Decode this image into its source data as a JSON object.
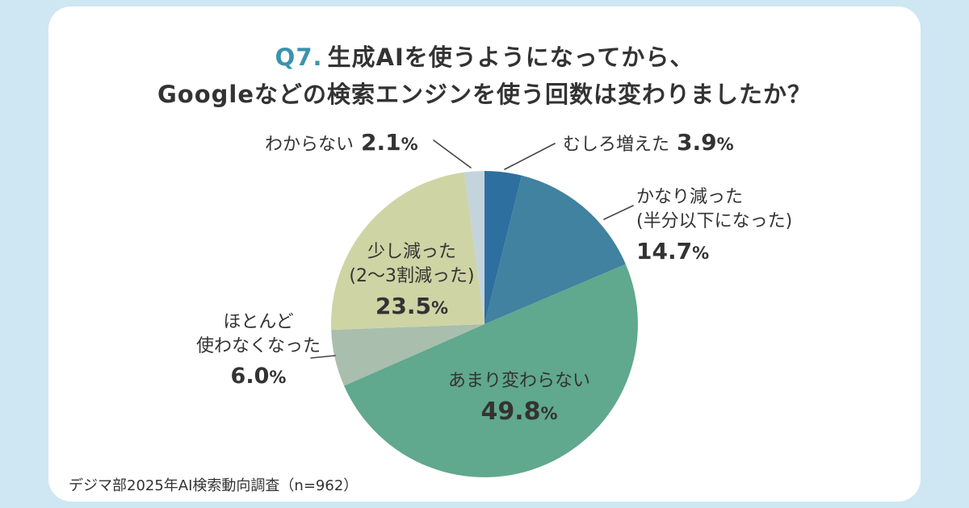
{
  "title": {
    "q": "Q7.",
    "line1": "生成AIを使うようになってから、",
    "line2": "Googleなどの検索エンジンを使う回数は変わりましたか？"
  },
  "source": "デジマ部2025年AI検索動向調査（n=962）",
  "chart_data": {
    "type": "pie",
    "title": "Q7. 生成AIを使うようになってから、Googleなどの検索エンジンを使う回数は変わりましたか？",
    "unit": "%",
    "start_angle": "top",
    "direction": "clockwise",
    "slices": [
      {
        "label": "むしろ増えた",
        "value": 3.9,
        "color": "#2d6f9e"
      },
      {
        "label": "かなり減った（半分以下になった）",
        "value": 14.7,
        "color": "#40829f"
      },
      {
        "label": "あまり変わらない",
        "value": 49.8,
        "color": "#60a88e"
      },
      {
        "label": "ほとんど使わなくなった",
        "value": 6.0,
        "color": "#a9bead"
      },
      {
        "label": "少し減った（2〜3割減った）",
        "value": 23.5,
        "color": "#ced4a4"
      },
      {
        "label": "わからない",
        "value": 2.1,
        "color": "#c3d4dd"
      }
    ],
    "source": "デジマ部2025年AI検索動向調査（n=962）"
  },
  "annotations": {
    "unknown": {
      "label": "わからない",
      "value": "2.1",
      "unit": "%"
    },
    "increased": {
      "label": "むしろ増えた",
      "value": "3.9",
      "unit": "%"
    },
    "greatly_decreased": {
      "label_line1": "かなり減った",
      "label_line2": "(半分以下になった)",
      "value": "14.7",
      "unit": "%"
    },
    "unchanged": {
      "label": "あまり変わらない",
      "value": "49.8",
      "unit": "%"
    },
    "mostly_stopped": {
      "label_line1": "ほとんど",
      "label_line2": "使わなくなった",
      "value": "6.0",
      "unit": "%"
    },
    "slightly_decreased": {
      "label_line1": "少し減った",
      "label_line2": "(2〜3割減った)",
      "value": "23.5",
      "unit": "%"
    }
  }
}
